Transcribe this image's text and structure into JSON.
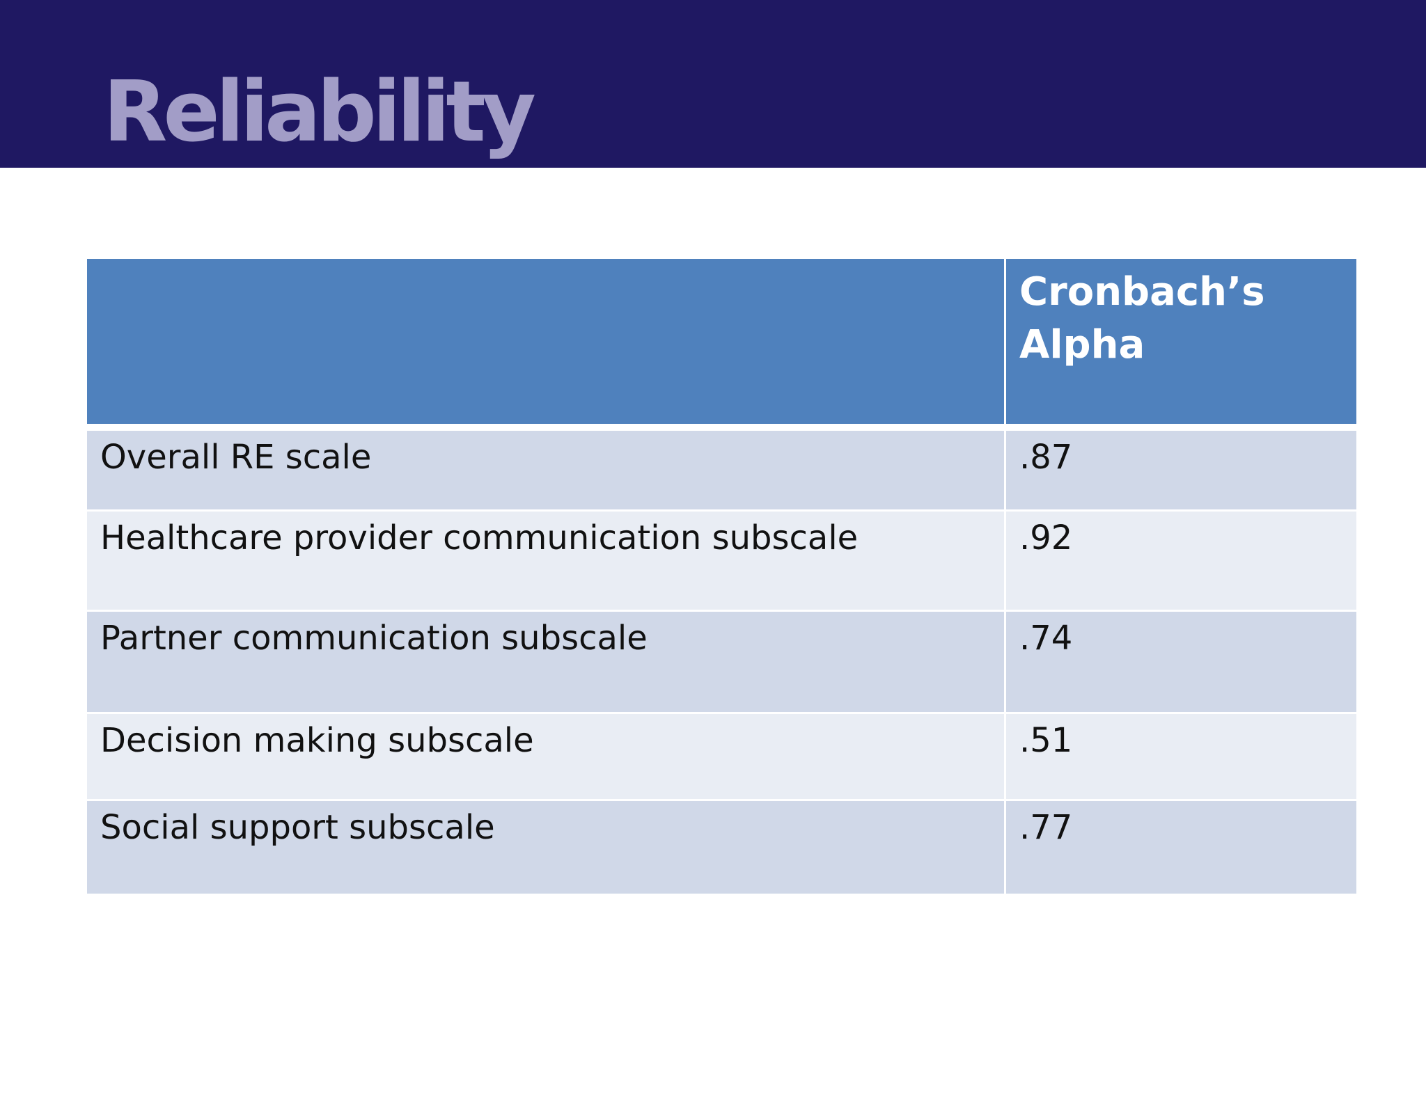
{
  "slide": {
    "title": "Reliability"
  },
  "table": {
    "headers": [
      "",
      "Cronbach’s Alpha"
    ],
    "rows": [
      {
        "label": "Overall RE scale",
        "alpha": ".87"
      },
      {
        "label": "Healthcare provider communication subscale",
        "alpha": ".92"
      },
      {
        "label": "Partner communication subscale",
        "alpha": ".74"
      },
      {
        "label": "Decision making subscale",
        "alpha": ".51"
      },
      {
        "label": "Social support subscale",
        "alpha": ".77"
      }
    ]
  },
  "colors": {
    "title_bar": "#1f1862",
    "title_text": "#a29dc7",
    "header_fill": "#4f81bd",
    "row_band_dark": "#d0d8e8",
    "row_band_light": "#e9edf4"
  }
}
